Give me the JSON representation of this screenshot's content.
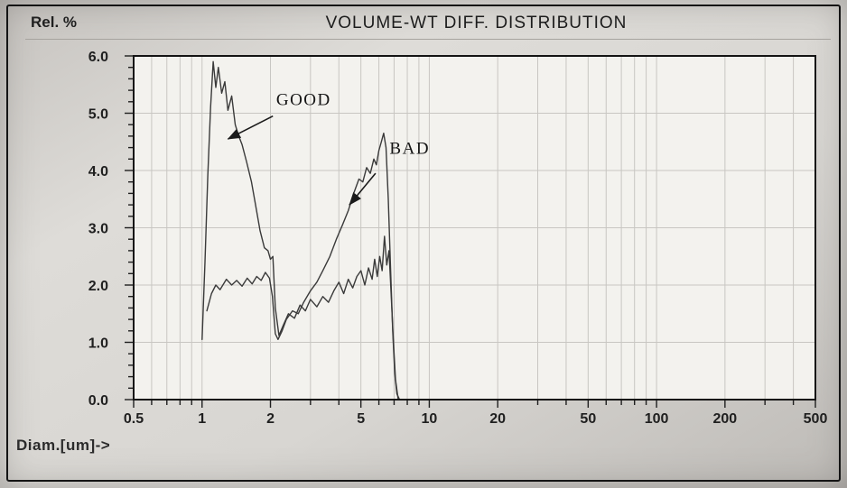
{
  "colors": {
    "frame": "#141414",
    "panel_bg": "#f3f2ee",
    "grid": "#c8c6c2",
    "curve": "#3a3a3a",
    "ink": "#1f1f1f"
  },
  "chart_data": {
    "type": "line",
    "title": "VOLUME-WT DIFF. DISTRIBUTION",
    "ylabel": "Rel. %",
    "xlabel": "Diam.[um]->",
    "x_scale": "log",
    "xlim": [
      0.5,
      500
    ],
    "ylim": [
      0,
      6
    ],
    "x_ticks": [
      0.5,
      1,
      2,
      5,
      10,
      20,
      50,
      100,
      200,
      500
    ],
    "x_tick_labels": [
      "0.5",
      "1",
      "2",
      "5",
      "10",
      "20",
      "50",
      "100",
      "200",
      "500"
    ],
    "y_ticks": [
      0,
      1,
      2,
      3,
      4,
      5,
      6
    ],
    "y_tick_labels": [
      "0.0",
      "1.0",
      "2.0",
      "3.0",
      "4.0",
      "5.0",
      "6.0"
    ],
    "grid": true,
    "legend_position": "on-chart annotations",
    "series": [
      {
        "name": "GOOD",
        "x": [
          1.0,
          1.03,
          1.06,
          1.09,
          1.12,
          1.15,
          1.18,
          1.22,
          1.26,
          1.3,
          1.35,
          1.4,
          1.45,
          1.5,
          1.57,
          1.65,
          1.72,
          1.8,
          1.88,
          1.95,
          2.0,
          2.05,
          2.1,
          2.18,
          2.28,
          2.4,
          2.55,
          2.7,
          2.85,
          3.0,
          3.2,
          3.4,
          3.6,
          3.8,
          4.0,
          4.2,
          4.4,
          4.6,
          4.8,
          5.0,
          5.2,
          5.4,
          5.6,
          5.75,
          5.9,
          6.05,
          6.2,
          6.35,
          6.5,
          6.65,
          6.8,
          6.95,
          7.1,
          7.3
        ],
        "y": [
          1.05,
          2.4,
          3.9,
          5.1,
          5.9,
          5.45,
          5.8,
          5.35,
          5.55,
          5.05,
          5.3,
          4.8,
          4.6,
          4.45,
          4.15,
          3.8,
          3.4,
          2.95,
          2.65,
          2.6,
          2.45,
          2.5,
          1.6,
          1.12,
          1.3,
          1.5,
          1.42,
          1.65,
          1.55,
          1.75,
          1.62,
          1.8,
          1.7,
          1.9,
          2.05,
          1.85,
          2.1,
          1.95,
          2.15,
          2.25,
          2.0,
          2.3,
          2.1,
          2.45,
          2.15,
          2.5,
          2.25,
          2.85,
          2.35,
          2.6,
          1.8,
          1.0,
          0.35,
          0.0
        ]
      },
      {
        "name": "BAD",
        "x": [
          1.05,
          1.1,
          1.15,
          1.2,
          1.28,
          1.35,
          1.42,
          1.5,
          1.58,
          1.66,
          1.74,
          1.82,
          1.9,
          1.98,
          2.04,
          2.1,
          2.16,
          2.25,
          2.35,
          2.5,
          2.65,
          2.8,
          3.0,
          3.2,
          3.4,
          3.65,
          3.9,
          4.15,
          4.4,
          4.65,
          4.9,
          5.1,
          5.3,
          5.5,
          5.7,
          5.85,
          6.0,
          6.15,
          6.3,
          6.45,
          6.6,
          6.75,
          6.9,
          7.05,
          7.2,
          7.4
        ],
        "y": [
          1.55,
          1.85,
          2.0,
          1.92,
          2.1,
          2.0,
          2.08,
          1.98,
          2.12,
          2.02,
          2.15,
          2.08,
          2.22,
          2.12,
          1.8,
          1.15,
          1.05,
          1.2,
          1.4,
          1.55,
          1.5,
          1.7,
          1.9,
          2.05,
          2.25,
          2.5,
          2.8,
          3.05,
          3.3,
          3.6,
          3.85,
          3.8,
          4.05,
          3.95,
          4.2,
          4.1,
          4.35,
          4.5,
          4.65,
          4.4,
          3.5,
          2.3,
          1.2,
          0.45,
          0.1,
          0.0
        ]
      }
    ],
    "annotations": [
      {
        "text": "GOOD",
        "text_x": 2.8,
        "text_y": 5.25,
        "arrow": [
          2.05,
          4.95,
          1.3,
          4.55
        ]
      },
      {
        "text": "BAD",
        "text_x": 8.2,
        "text_y": 4.4,
        "arrow": [
          5.8,
          3.95,
          4.45,
          3.4
        ]
      }
    ]
  }
}
